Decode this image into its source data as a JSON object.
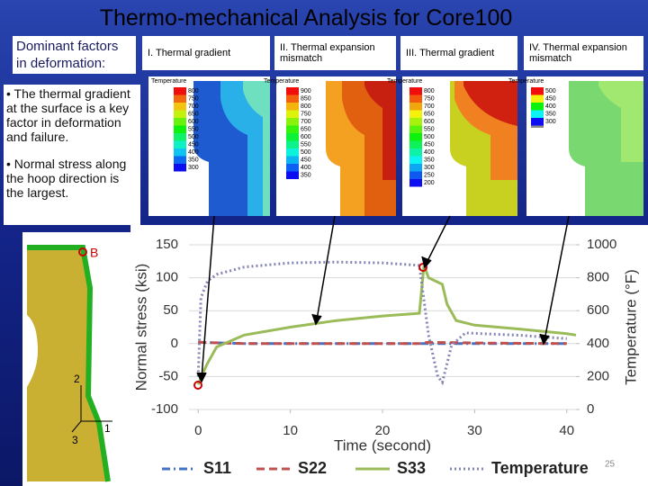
{
  "title": "Thermo-mechanical Analysis for Core100",
  "intro": "Dominant factors in deformation:",
  "bullets": [
    "• The thermal gradient at  the surface is a key factor in deformation and failure.",
    "• Normal stress along the hoop direction is the largest."
  ],
  "panels": [
    {
      "label": "I. Thermal gradient",
      "legend_title": "Temperature",
      "legend_labels": [
        800,
        750,
        700,
        650,
        600,
        550,
        500,
        450,
        400,
        350,
        300
      ]
    },
    {
      "label": "II. Thermal expansion mismatch",
      "legend_title": "Temperature",
      "legend_labels": [
        900,
        850,
        800,
        750,
        700,
        650,
        600,
        550,
        500,
        450,
        400,
        350
      ]
    },
    {
      "label": "III. Thermal gradient",
      "legend_title": "Temperature",
      "legend_labels": [
        800,
        750,
        700,
        650,
        600,
        550,
        500,
        450,
        400,
        350,
        300,
        250,
        200
      ]
    },
    {
      "label": "IV. Thermal expansion mismatch",
      "legend_title": "Temperature",
      "legend_labels": [
        500,
        450,
        400,
        350,
        300
      ]
    }
  ],
  "diagram_labels": [
    "B",
    "2",
    "3",
    "1"
  ],
  "page_number": "25",
  "chart_data": {
    "type": "line",
    "xlabel": "Time (second)",
    "ylabel": "Normal stress (ksi)",
    "y2label": "Temperature (°F)",
    "xlim": [
      -1,
      41
    ],
    "xticks": [
      0,
      10,
      20,
      30,
      40
    ],
    "ylim": [
      -100,
      150
    ],
    "yticks": [
      -100,
      -50,
      0,
      50,
      100,
      150
    ],
    "y2lim": [
      0,
      1000
    ],
    "y2ticks": [
      0,
      200,
      400,
      600,
      800,
      1000
    ],
    "grid": true,
    "legend": "bottom",
    "series": [
      {
        "name": "S11",
        "color": "#4472c4",
        "dash": "dash-dot",
        "x": [
          0,
          5,
          10,
          20,
          30,
          40
        ],
        "values": [
          2,
          0,
          0,
          0,
          0,
          0
        ]
      },
      {
        "name": "S22",
        "color": "#c0504d",
        "dash": "dash",
        "x": [
          0,
          5,
          10,
          20,
          24,
          25,
          30,
          40
        ],
        "values": [
          2,
          0,
          0,
          0,
          0,
          2,
          1,
          0
        ]
      },
      {
        "name": "S33",
        "color": "#9bbb59",
        "dash": "solid",
        "x": [
          0,
          0.5,
          1,
          2,
          5,
          10,
          15,
          20,
          24,
          24.5,
          25,
          26.5,
          27,
          28,
          30,
          35,
          40,
          41
        ],
        "values": [
          -62,
          -45,
          -30,
          -5,
          13,
          25,
          35,
          42,
          46,
          119,
          100,
          90,
          60,
          35,
          28,
          22,
          15,
          13
        ]
      },
      {
        "name": "Temperature",
        "color": "#8585b5",
        "dash": "dot",
        "axis": "y2",
        "x": [
          0,
          0.3,
          1,
          2,
          5,
          10,
          15,
          20,
          24,
          25,
          26,
          26.5,
          27.5,
          29,
          35,
          40
        ],
        "values": [
          200,
          680,
          780,
          820,
          865,
          890,
          895,
          890,
          875,
          450,
          200,
          165,
          390,
          465,
          450,
          430
        ]
      }
    ]
  }
}
